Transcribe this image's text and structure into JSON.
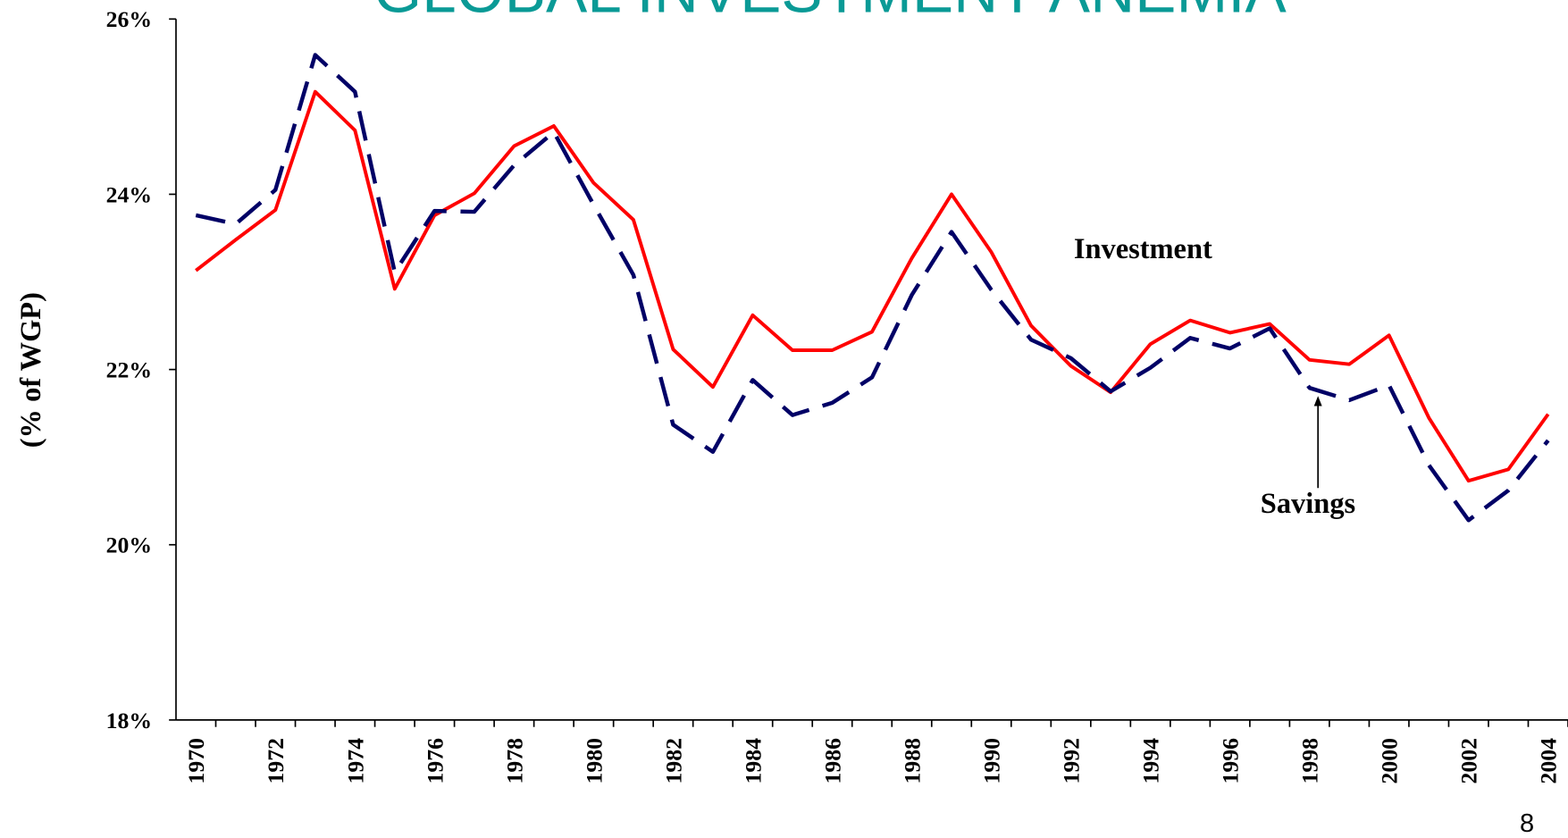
{
  "chart_data": {
    "type": "line",
    "title": "GLOBAL INVESTMENT ANEMIA",
    "y_label": "(% of WGP)",
    "categories": [
      "1970",
      null,
      "1972",
      null,
      "1974",
      null,
      "1976",
      null,
      "1978",
      null,
      "1980",
      null,
      "1982",
      null,
      "1984",
      null,
      "1986",
      null,
      "1988",
      null,
      "1990",
      null,
      "1992",
      null,
      "1994",
      null,
      "1996",
      null,
      "1998",
      null,
      "2000",
      null,
      "2002",
      null,
      "2004"
    ],
    "series": [
      {
        "name": "Investment",
        "color": "#ff0000",
        "dash": false,
        "values": [
          23.13,
          23.48,
          23.82,
          25.17,
          24.73,
          22.92,
          23.76,
          24.01,
          24.55,
          24.78,
          24.13,
          23.71,
          22.23,
          21.8,
          22.62,
          22.22,
          22.22,
          22.43,
          23.27,
          24.0,
          23.34,
          22.5,
          22.04,
          21.74,
          22.29,
          22.56,
          22.42,
          22.52,
          22.11,
          22.06,
          22.39,
          21.45,
          20.73,
          20.86,
          21.49
        ]
      },
      {
        "name": "Savings",
        "color": "#000066",
        "dash": true,
        "values": [
          23.76,
          23.66,
          24.05,
          25.59,
          25.17,
          23.11,
          23.81,
          23.8,
          24.33,
          24.71,
          23.88,
          23.08,
          21.37,
          21.06,
          21.88,
          21.48,
          21.62,
          21.91,
          22.85,
          23.57,
          22.91,
          22.34,
          22.13,
          21.75,
          22.02,
          22.36,
          22.24,
          22.47,
          21.79,
          21.65,
          21.82,
          20.91,
          20.28,
          20.62,
          21.19
        ]
      }
    ],
    "ylim": [
      18,
      26
    ],
    "yticks": [
      {
        "value": 18,
        "label": "18%"
      },
      {
        "value": 20,
        "label": "20%"
      },
      {
        "value": 22,
        "label": "22%"
      },
      {
        "value": 24,
        "label": "24%"
      },
      {
        "value": 26,
        "label": "26%"
      }
    ],
    "grid": false,
    "page_number": "8"
  }
}
